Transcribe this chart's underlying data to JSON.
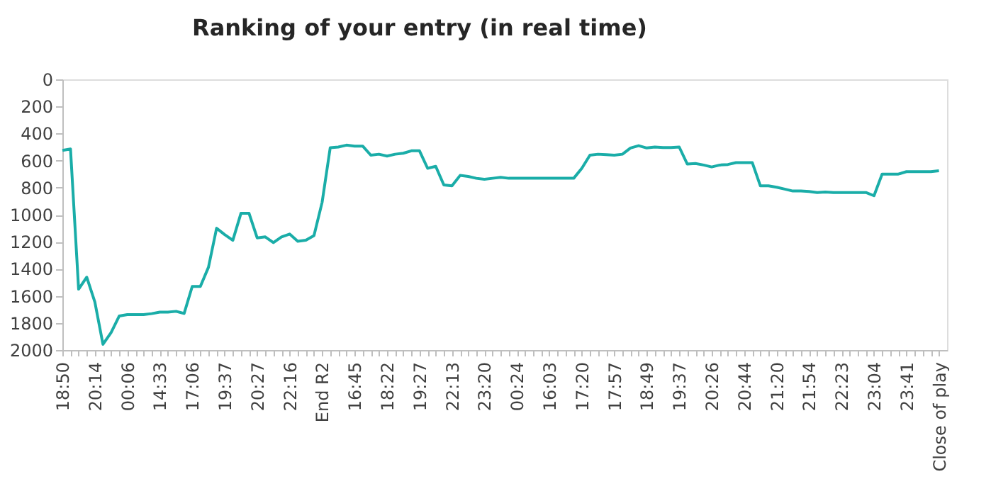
{
  "chart_data": {
    "type": "line",
    "title": "Ranking of your entry (in real time)",
    "categories": [
      "18:50",
      null,
      null,
      null,
      "20:14",
      null,
      null,
      null,
      "00:06",
      null,
      null,
      null,
      "14:33",
      null,
      null,
      null,
      "17:06",
      null,
      null,
      null,
      "19:37",
      null,
      null,
      null,
      "20:27",
      null,
      null,
      null,
      "22:16",
      null,
      null,
      null,
      "End R2",
      null,
      null,
      null,
      "16:45",
      null,
      null,
      null,
      "18:22",
      null,
      null,
      null,
      "19:27",
      null,
      null,
      null,
      "22:13",
      null,
      null,
      null,
      "23:20",
      null,
      null,
      null,
      "00:24",
      null,
      null,
      null,
      "16:03",
      null,
      null,
      null,
      "17:20",
      null,
      null,
      null,
      "17:57",
      null,
      null,
      null,
      "18:49",
      null,
      null,
      null,
      "19:37",
      null,
      null,
      null,
      "20:26",
      null,
      null,
      null,
      "20:44",
      null,
      null,
      null,
      "21:20",
      null,
      null,
      null,
      "21:54",
      null,
      null,
      null,
      "22:23",
      null,
      null,
      null,
      "23:04",
      null,
      null,
      null,
      "23:41",
      null,
      null,
      null,
      "Close of play"
    ],
    "series": [
      {
        "color": "#1aada8",
        "values": [
          525,
          514,
          1550,
          1462,
          1644,
          1958,
          1871,
          1749,
          1738,
          1738,
          1738,
          1731,
          1720,
          1720,
          1714,
          1730,
          1530,
          1530,
          1388,
          1100,
          1147,
          1189,
          990,
          990,
          1171,
          1164,
          1206,
          1164,
          1143,
          1196,
          1189,
          1154,
          909,
          505,
          500,
          486,
          493,
          493,
          560,
          553,
          567,
          553,
          546,
          528,
          528,
          657,
          643,
          780,
          787,
          710,
          717,
          731,
          738,
          731,
          724,
          731,
          731,
          731,
          731,
          731,
          731,
          731,
          731,
          731,
          657,
          560,
          553,
          556,
          560,
          553,
          507,
          490,
          507,
          500,
          504,
          504,
          500,
          626,
          622,
          633,
          647,
          633,
          629,
          615,
          615,
          615,
          787,
          787,
          797,
          811,
          825,
          825,
          829,
          836,
          832,
          836,
          836,
          836,
          836,
          836,
          860,
          700,
          700,
          700,
          682,
          682,
          682,
          682,
          675
        ]
      }
    ],
    "ylim": [
      2000,
      0
    ],
    "yticks": [
      0,
      200,
      400,
      600,
      800,
      1000,
      1200,
      1400,
      1600,
      1800,
      2000
    ],
    "grid": false,
    "marker": "none",
    "line_style": "solid"
  }
}
